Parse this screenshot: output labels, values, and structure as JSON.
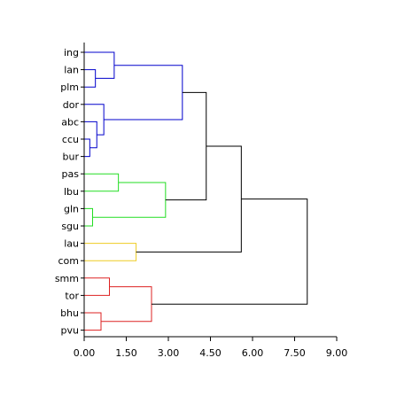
{
  "chart_data": {
    "type": "dendrogram",
    "orientation": "horizontal",
    "xlim": [
      0,
      9
    ],
    "x_ticks": [
      "0.00",
      "1.50",
      "3.00",
      "4.50",
      "6.00",
      "7.50",
      "9.00"
    ],
    "x_tick_values": [
      0,
      1.5,
      3,
      4.5,
      6,
      7.5,
      9
    ],
    "leaves": [
      "ing",
      "lan",
      "plm",
      "dor",
      "abc",
      "ccu",
      "bur",
      "pas",
      "lbu",
      "gln",
      "sgu",
      "lau",
      "com",
      "smm",
      "tor",
      "bhu",
      "pvu"
    ],
    "cluster_colors": {
      "blue": "#0000cc",
      "green": "#22dd22",
      "yellow": "#eecc22",
      "red": "#dd2222",
      "black": "#000000"
    },
    "merges": [
      {
        "id": "n1",
        "left": "lan",
        "right": "plm",
        "height": 0.4,
        "color": "blue"
      },
      {
        "id": "n2",
        "left": "ing",
        "right": "n1",
        "height": 1.07,
        "color": "blue"
      },
      {
        "id": "n3",
        "left": "ccu",
        "right": "bur",
        "height": 0.2,
        "color": "blue"
      },
      {
        "id": "n4",
        "left": "abc",
        "right": "n3",
        "height": 0.45,
        "color": "blue"
      },
      {
        "id": "n5",
        "left": "dor",
        "right": "n4",
        "height": 0.7,
        "color": "blue"
      },
      {
        "id": "n6",
        "left": "n2",
        "right": "n5",
        "height": 3.5,
        "color": "blue"
      },
      {
        "id": "n7",
        "left": "pas",
        "right": "lbu",
        "height": 1.22,
        "color": "green"
      },
      {
        "id": "n8",
        "left": "gln",
        "right": "sgu",
        "height": 0.3,
        "color": "green"
      },
      {
        "id": "n9",
        "left": "n7",
        "right": "n8",
        "height": 2.9,
        "color": "green"
      },
      {
        "id": "n10",
        "left": "n6",
        "right": "n9",
        "height": 4.35,
        "color": "black"
      },
      {
        "id": "n11",
        "left": "lau",
        "right": "com",
        "height": 1.85,
        "color": "yellow"
      },
      {
        "id": "n12",
        "left": "n10",
        "right": "n11",
        "height": 5.6,
        "color": "black"
      },
      {
        "id": "n13",
        "left": "smm",
        "right": "tor",
        "height": 0.9,
        "color": "red"
      },
      {
        "id": "n14",
        "left": "bhu",
        "right": "pvu",
        "height": 0.6,
        "color": "red"
      },
      {
        "id": "n15",
        "left": "n13",
        "right": "n14",
        "height": 2.4,
        "color": "red"
      },
      {
        "id": "n16",
        "left": "n12",
        "right": "n15",
        "height": 7.95,
        "color": "black"
      }
    ]
  }
}
